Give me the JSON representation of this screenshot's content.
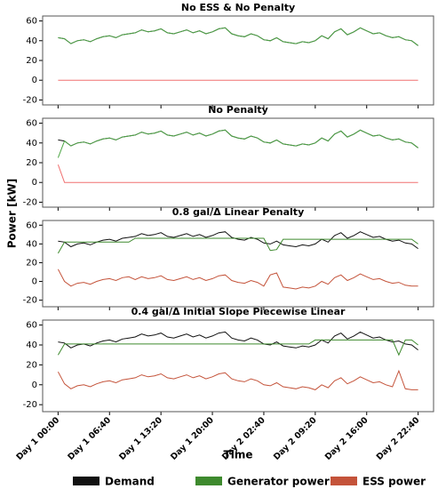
{
  "xlabel": "Time",
  "ylabel": "Power [kW]",
  "chart_data": [
    {
      "type": "line",
      "title": "No ESS & No Penalty",
      "x": [
        0,
        50,
        100,
        150,
        200,
        250,
        300,
        350,
        400,
        450,
        500,
        550,
        600,
        650,
        700,
        750,
        800,
        850,
        900,
        950,
        1000,
        1050,
        1100,
        1150,
        1200,
        1250,
        1300,
        1350,
        1400,
        1450,
        1500,
        1550,
        1600,
        1650,
        1700,
        1750,
        1800,
        1850,
        1900,
        1950,
        2000,
        2050,
        2100,
        2150,
        2200,
        2250,
        2300,
        2350,
        2400,
        2450,
        2500,
        2550,
        2600,
        2650,
        2700,
        2750,
        2800
      ],
      "xlim": [
        -120,
        2920
      ],
      "xticks": [
        0,
        400,
        800,
        1200,
        1600,
        2000,
        2400,
        2800
      ],
      "ylim": [
        -25,
        65
      ],
      "yticks": [
        -20,
        0,
        20,
        40,
        60
      ],
      "series": [
        {
          "name": "Demand",
          "color": "#111111",
          "values": [
            43,
            42,
            37,
            40,
            41,
            39,
            42,
            44,
            45,
            43,
            46,
            47,
            48,
            51,
            49,
            50,
            52,
            48,
            47,
            49,
            51,
            48,
            50,
            47,
            49,
            52,
            53,
            47,
            45,
            44,
            47,
            45,
            41,
            40,
            43,
            39,
            38,
            37,
            39,
            38,
            40,
            45,
            42,
            49,
            52,
            46,
            49,
            53,
            50,
            47,
            48,
            45,
            43,
            44,
            41,
            40,
            35
          ]
        },
        {
          "name": "Generator power",
          "color": "#4ea646",
          "values": [
            43,
            42,
            37,
            40,
            41,
            39,
            42,
            44,
            45,
            43,
            46,
            47,
            48,
            51,
            49,
            50,
            52,
            48,
            47,
            49,
            51,
            48,
            50,
            47,
            49,
            52,
            53,
            47,
            45,
            44,
            47,
            45,
            41,
            40,
            43,
            39,
            38,
            37,
            39,
            38,
            40,
            45,
            42,
            49,
            52,
            46,
            49,
            53,
            50,
            47,
            48,
            45,
            43,
            44,
            41,
            40,
            35
          ]
        },
        {
          "name": "ESS power",
          "color": "#f07070",
          "values": [
            0,
            0,
            0,
            0,
            0,
            0,
            0,
            0,
            0,
            0,
            0,
            0,
            0,
            0,
            0,
            0,
            0,
            0,
            0,
            0,
            0,
            0,
            0,
            0,
            0,
            0,
            0,
            0,
            0,
            0,
            0,
            0,
            0,
            0,
            0,
            0,
            0,
            0,
            0,
            0,
            0,
            0,
            0,
            0,
            0,
            0,
            0,
            0,
            0,
            0,
            0,
            0,
            0,
            0,
            0,
            0,
            0
          ]
        }
      ]
    },
    {
      "type": "line",
      "title": "No Penalty",
      "x": [
        0,
        50,
        100,
        150,
        200,
        250,
        300,
        350,
        400,
        450,
        500,
        550,
        600,
        650,
        700,
        750,
        800,
        850,
        900,
        950,
        1000,
        1050,
        1100,
        1150,
        1200,
        1250,
        1300,
        1350,
        1400,
        1450,
        1500,
        1550,
        1600,
        1650,
        1700,
        1750,
        1800,
        1850,
        1900,
        1950,
        2000,
        2050,
        2100,
        2150,
        2200,
        2250,
        2300,
        2350,
        2400,
        2450,
        2500,
        2550,
        2600,
        2650,
        2700,
        2750,
        2800
      ],
      "xlim": [
        -120,
        2920
      ],
      "xticks": [
        0,
        400,
        800,
        1200,
        1600,
        2000,
        2400,
        2800
      ],
      "ylim": [
        -25,
        65
      ],
      "yticks": [
        -20,
        0,
        20,
        40,
        60
      ],
      "series": [
        {
          "name": "Demand",
          "color": "#111111",
          "values": [
            43,
            42,
            37,
            40,
            41,
            39,
            42,
            44,
            45,
            43,
            46,
            47,
            48,
            51,
            49,
            50,
            52,
            48,
            47,
            49,
            51,
            48,
            50,
            47,
            49,
            52,
            53,
            47,
            45,
            44,
            47,
            45,
            41,
            40,
            43,
            39,
            38,
            37,
            39,
            38,
            40,
            45,
            42,
            49,
            52,
            46,
            49,
            53,
            50,
            47,
            48,
            45,
            43,
            44,
            41,
            40,
            35
          ]
        },
        {
          "name": "Generator power",
          "color": "#4ea646",
          "values": [
            25,
            42,
            37,
            40,
            41,
            39,
            42,
            44,
            45,
            43,
            46,
            47,
            48,
            51,
            49,
            50,
            52,
            48,
            47,
            49,
            51,
            48,
            50,
            47,
            49,
            52,
            53,
            47,
            45,
            44,
            47,
            45,
            41,
            40,
            43,
            39,
            38,
            37,
            39,
            38,
            40,
            45,
            42,
            49,
            52,
            46,
            49,
            53,
            50,
            47,
            48,
            45,
            43,
            44,
            41,
            40,
            35
          ]
        },
        {
          "name": "ESS power",
          "color": "#f07070",
          "values": [
            18,
            0,
            0,
            0,
            0,
            0,
            0,
            0,
            0,
            0,
            0,
            0,
            0,
            0,
            0,
            0,
            0,
            0,
            0,
            0,
            0,
            0,
            0,
            0,
            0,
            0,
            0,
            0,
            0,
            0,
            0,
            0,
            0,
            0,
            0,
            0,
            0,
            0,
            0,
            0,
            0,
            0,
            0,
            0,
            0,
            0,
            0,
            0,
            0,
            0,
            0,
            0,
            0,
            0,
            0,
            0,
            0
          ]
        }
      ]
    },
    {
      "type": "line",
      "title": "0.8 gal/Δ Linear Penalty",
      "x": [
        0,
        50,
        100,
        150,
        200,
        250,
        300,
        350,
        400,
        450,
        500,
        550,
        600,
        650,
        700,
        750,
        800,
        850,
        900,
        950,
        1000,
        1050,
        1100,
        1150,
        1200,
        1250,
        1300,
        1350,
        1400,
        1450,
        1500,
        1550,
        1600,
        1650,
        1700,
        1750,
        1800,
        1850,
        1900,
        1950,
        2000,
        2050,
        2100,
        2150,
        2200,
        2250,
        2300,
        2350,
        2400,
        2450,
        2500,
        2550,
        2600,
        2650,
        2700,
        2750,
        2800
      ],
      "xlim": [
        -120,
        2920
      ],
      "xticks": [
        0,
        400,
        800,
        1200,
        1600,
        2000,
        2400,
        2800
      ],
      "ylim": [
        -27,
        65
      ],
      "yticks": [
        -20,
        0,
        20,
        40,
        60
      ],
      "series": [
        {
          "name": "Demand",
          "color": "#111111",
          "values": [
            43,
            42,
            37,
            40,
            41,
            39,
            42,
            44,
            45,
            43,
            46,
            47,
            48,
            51,
            49,
            50,
            52,
            48,
            47,
            49,
            51,
            48,
            50,
            47,
            49,
            52,
            53,
            47,
            45,
            44,
            47,
            45,
            41,
            40,
            43,
            39,
            38,
            37,
            39,
            38,
            40,
            45,
            42,
            49,
            52,
            46,
            49,
            53,
            50,
            47,
            48,
            45,
            43,
            44,
            41,
            40,
            35
          ]
        },
        {
          "name": "Generator power",
          "color": "#3e8a2e",
          "values": [
            30,
            42,
            42,
            42,
            42,
            42,
            42,
            42,
            42,
            42,
            42,
            42,
            46,
            46,
            46,
            46,
            46,
            46,
            46,
            46,
            46,
            46,
            46,
            46,
            46,
            46,
            46,
            46,
            46,
            46,
            46,
            46,
            46,
            33,
            34,
            45,
            45,
            45,
            45,
            45,
            45,
            45,
            45,
            45,
            45,
            45,
            45,
            45,
            45,
            45,
            45,
            45,
            45,
            45,
            45,
            45,
            40
          ]
        },
        {
          "name": "ESS power",
          "color": "#c4533a",
          "values": [
            13,
            0,
            -5,
            -2,
            -1,
            -3,
            0,
            2,
            3,
            1,
            4,
            5,
            2,
            5,
            3,
            4,
            6,
            2,
            1,
            3,
            5,
            2,
            4,
            1,
            3,
            6,
            7,
            1,
            -1,
            -2,
            1,
            -1,
            -5,
            7,
            9,
            -6,
            -7,
            -8,
            -6,
            -7,
            -5,
            0,
            -3,
            4,
            7,
            1,
            4,
            8,
            5,
            2,
            3,
            0,
            -2,
            -1,
            -4,
            -5,
            -5
          ]
        }
      ]
    },
    {
      "type": "line",
      "title": "0.4 gal/Δ Initial Slope Piecewise Linear",
      "x": [
        0,
        50,
        100,
        150,
        200,
        250,
        300,
        350,
        400,
        450,
        500,
        550,
        600,
        650,
        700,
        750,
        800,
        850,
        900,
        950,
        1000,
        1050,
        1100,
        1150,
        1200,
        1250,
        1300,
        1350,
        1400,
        1450,
        1500,
        1550,
        1600,
        1650,
        1700,
        1750,
        1800,
        1850,
        1900,
        1950,
        2000,
        2050,
        2100,
        2150,
        2200,
        2250,
        2300,
        2350,
        2400,
        2450,
        2500,
        2550,
        2600,
        2650,
        2700,
        2750,
        2800
      ],
      "xlim": [
        -120,
        2920
      ],
      "xticks": [
        {
          "value": 0,
          "label": "Day 1 00:00"
        },
        {
          "value": 400,
          "label": "Day 1 06:40"
        },
        {
          "value": 800,
          "label": "Day 1 13:20"
        },
        {
          "value": 1200,
          "label": "Day 1 20:00"
        },
        {
          "value": 1600,
          "label": "Day 2 02:40"
        },
        {
          "value": 2000,
          "label": "Day 2 09:20"
        },
        {
          "value": 2400,
          "label": "Day 2 16:00"
        },
        {
          "value": 2800,
          "label": "Day 2 22:40"
        }
      ],
      "ylim": [
        -27,
        65
      ],
      "yticks": [
        -20,
        0,
        20,
        40,
        60
      ],
      "series": [
        {
          "name": "Demand",
          "color": "#111111",
          "values": [
            43,
            42,
            37,
            40,
            41,
            39,
            42,
            44,
            45,
            43,
            46,
            47,
            48,
            51,
            49,
            50,
            52,
            48,
            47,
            49,
            51,
            48,
            50,
            47,
            49,
            52,
            53,
            47,
            45,
            44,
            47,
            45,
            41,
            40,
            43,
            39,
            38,
            37,
            39,
            38,
            40,
            45,
            42,
            49,
            52,
            46,
            49,
            53,
            50,
            47,
            48,
            45,
            43,
            44,
            41,
            40,
            35
          ]
        },
        {
          "name": "Generator power",
          "color": "#3e8a2e",
          "values": [
            30,
            41,
            41,
            41,
            41,
            41,
            41,
            41,
            41,
            41,
            41,
            41,
            41,
            41,
            41,
            41,
            41,
            41,
            41,
            41,
            41,
            41,
            41,
            41,
            41,
            41,
            41,
            41,
            41,
            41,
            41,
            41,
            41,
            41,
            41,
            41,
            41,
            41,
            41,
            41,
            45,
            45,
            45,
            45,
            45,
            45,
            45,
            45,
            45,
            45,
            45,
            45,
            45,
            30,
            45,
            45,
            40
          ]
        },
        {
          "name": "ESS power",
          "color": "#c4533a",
          "values": [
            13,
            1,
            -4,
            -1,
            0,
            -2,
            1,
            3,
            4,
            2,
            5,
            6,
            7,
            10,
            8,
            9,
            11,
            7,
            6,
            8,
            10,
            7,
            9,
            6,
            8,
            11,
            12,
            6,
            4,
            3,
            6,
            4,
            0,
            -1,
            2,
            -2,
            -3,
            -4,
            -2,
            -3,
            -5,
            0,
            -3,
            4,
            7,
            1,
            4,
            8,
            5,
            2,
            3,
            0,
            -2,
            14,
            -4,
            -5,
            -5
          ]
        }
      ]
    }
  ]
}
